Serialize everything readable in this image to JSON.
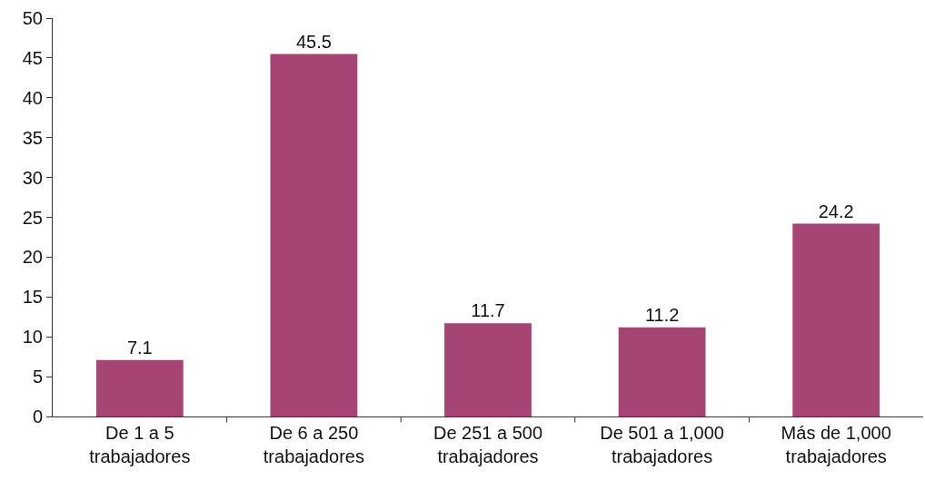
{
  "chart_data": {
    "type": "bar",
    "categories": [
      "De 1 a 5\ntrabajadores",
      "De 6 a 250\ntrabajadores",
      "De 251 a 500\ntrabajadores",
      "De 501 a 1,000\ntrabajadores",
      "Más de 1,000\ntrabajadores"
    ],
    "values": [
      7.1,
      45.5,
      11.7,
      11.2,
      24.2
    ],
    "color": "#a64473",
    "data_labels": true,
    "grid": false,
    "legend": false,
    "ylim": [
      0,
      50
    ],
    "yticks": [
      0,
      5,
      10,
      15,
      20,
      25,
      30,
      35,
      40,
      45,
      50
    ]
  }
}
